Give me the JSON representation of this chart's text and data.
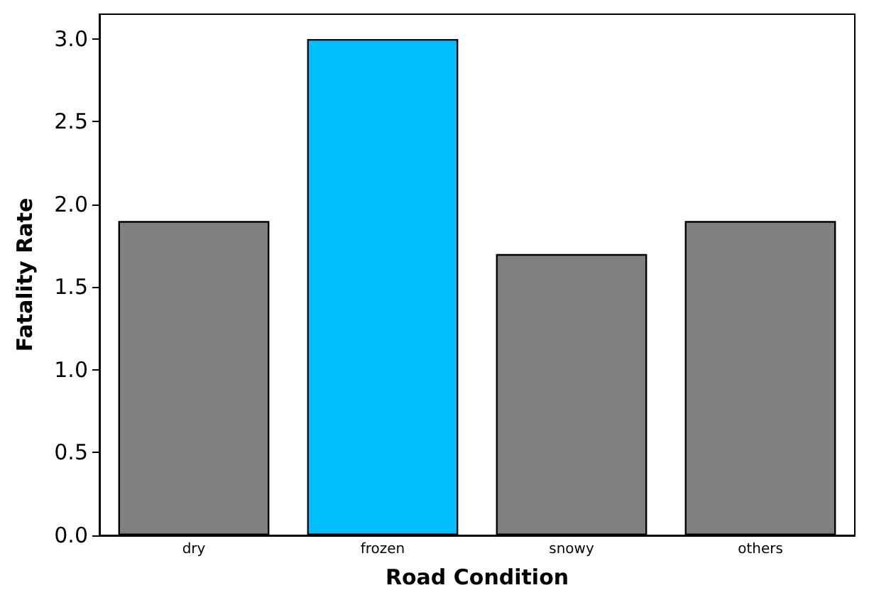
{
  "chart_data": {
    "type": "bar",
    "xlabel": "Road Condition",
    "ylabel": "Fatality Rate",
    "categories": [
      "dry",
      "frozen",
      "snowy",
      "others"
    ],
    "values": [
      1.9,
      3.0,
      1.7,
      1.9
    ],
    "colors": [
      "#808080",
      "#00bfff",
      "#808080",
      "#808080"
    ],
    "ylim": [
      0,
      3.15
    ],
    "yticks": [
      {
        "value": 0,
        "label": "0.0"
      },
      {
        "value": 0.5,
        "label": "0.5"
      },
      {
        "value": 1,
        "label": "1.0"
      },
      {
        "value": 1.5,
        "label": "1.5"
      },
      {
        "value": 2,
        "label": "2.0"
      },
      {
        "value": 2.5,
        "label": "2.5"
      },
      {
        "value": 3,
        "label": "3.0"
      }
    ],
    "grid": false
  }
}
